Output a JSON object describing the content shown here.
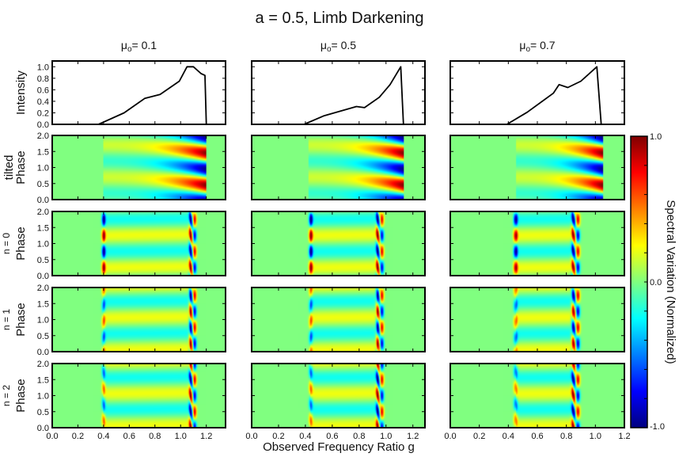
{
  "chart_data": {
    "type": "heatmap",
    "title": "a = 0.5, Limb Darkening",
    "xlabel": "Observed Frequency Ratio g",
    "columns": [
      {
        "title": {
          "symbol": "μ",
          "sub": "o",
          "value": "= 0.1"
        },
        "xlim": [
          0,
          1.35
        ]
      },
      {
        "title": {
          "symbol": "μ",
          "sub": "o",
          "value": "= 0.5"
        },
        "xlim": [
          0,
          1.29
        ]
      },
      {
        "title": {
          "symbol": "μ",
          "sub": "o",
          "value": "= 0.7"
        },
        "xlim": [
          0,
          1.2
        ]
      }
    ],
    "x_ticks": [
      "0.0",
      "0.2",
      "0.4",
      "0.6",
      "0.8",
      "1.0",
      "1.2"
    ],
    "rows": [
      {
        "label": "Intensity",
        "sublabel": "",
        "type": "line",
        "ylim": [
          0,
          1.1
        ],
        "y_ticks": [
          "0.0",
          "0.2",
          "0.4",
          "0.6",
          "0.8",
          "1.0"
        ]
      },
      {
        "label": "Phase",
        "sublabel": "tilted",
        "type": "heatmap",
        "ylim": [
          0,
          2
        ],
        "y_ticks": [
          "0.0",
          "0.5",
          "1.0",
          "1.5",
          "2.0"
        ]
      },
      {
        "label": "Phase",
        "sublabel": "n = 0",
        "type": "heatmap",
        "ylim": [
          0,
          2
        ],
        "y_ticks": [
          "0.0",
          "0.5",
          "1.0",
          "1.5",
          "2.0"
        ]
      },
      {
        "label": "Phase",
        "sublabel": "n = 1",
        "type": "heatmap",
        "ylim": [
          0,
          2
        ],
        "y_ticks": [
          "0.0",
          "0.5",
          "1.0",
          "1.5",
          "2.0"
        ]
      },
      {
        "label": "Phase",
        "sublabel": "n = 2",
        "type": "heatmap",
        "ylim": [
          0,
          2
        ],
        "y_ticks": [
          "0.0",
          "0.5",
          "1.0",
          "1.5",
          "2.0"
        ]
      }
    ],
    "intensity_series": [
      {
        "x": [
          0,
          0.36,
          0.56,
          0.72,
          0.84,
          0.99,
          1.05,
          1.1,
          1.16,
          1.19,
          1.2,
          1.35
        ],
        "y": [
          0,
          0,
          0.2,
          0.45,
          0.52,
          0.75,
          1.0,
          1.0,
          0.88,
          0.85,
          0,
          0
        ]
      },
      {
        "x": [
          0,
          0.39,
          0.54,
          0.78,
          0.84,
          0.95,
          1.03,
          1.11,
          1.13,
          1.29
        ],
        "y": [
          0,
          0,
          0.15,
          0.31,
          0.29,
          0.47,
          0.69,
          1.0,
          0,
          0
        ]
      },
      {
        "x": [
          0,
          0.39,
          0.53,
          0.71,
          0.75,
          0.81,
          0.9,
          1.01,
          1.04,
          1.2
        ],
        "y": [
          0,
          0,
          0.21,
          0.54,
          0.69,
          0.64,
          0.75,
          1.0,
          0,
          0
        ]
      }
    ],
    "colorbar": {
      "label": "Spectral Variation (Normalized)",
      "range": [
        -1,
        1
      ],
      "tick_labels": [
        "1.0",
        "0.0",
        "-1.0"
      ],
      "colormap": "jet"
    },
    "grid": false,
    "line_color": "#000000",
    "background_value_color": "#80ff80"
  }
}
